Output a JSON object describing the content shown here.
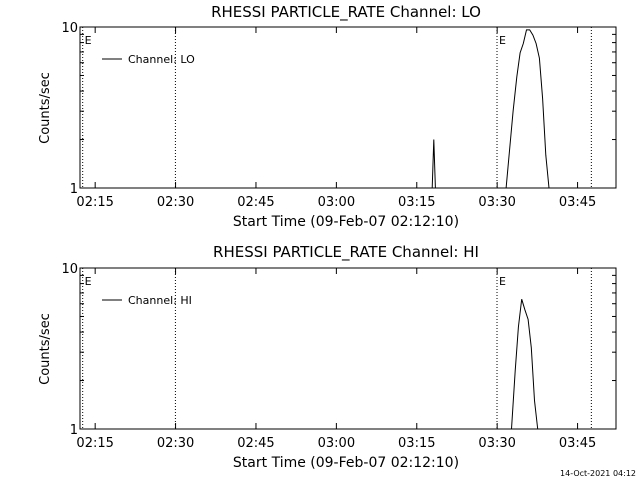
{
  "footer": {
    "date_stamp": "14-Oct-2021 04:12"
  },
  "chart_data": [
    {
      "type": "line",
      "title": "RHESSI PARTICLE_RATE Channel: LO",
      "xlabel": "Start Time (09-Feb-07 02:12:10)",
      "ylabel": "Counts/sec",
      "x_unit": "minutes since 02:12:10",
      "xlim": [
        0,
        100
      ],
      "ylim": [
        1,
        10
      ],
      "y_scale": "log",
      "x_tick_labels": [
        "02:15",
        "02:30",
        "02:45",
        "03:00",
        "03:15",
        "03:30",
        "03:45"
      ],
      "y_tick_labels": [
        "1",
        "10"
      ],
      "event_markers": [
        {
          "label": "E",
          "x": 0.5
        },
        {
          "label": "",
          "x": 17.8
        },
        {
          "label": "E",
          "x": 77.8
        },
        {
          "label": "",
          "x": 95.4
        }
      ],
      "legend": {
        "position": "top-left",
        "entries": [
          "Channel: LO"
        ]
      },
      "series": [
        {
          "name": "Channel: LO",
          "color": "#000000",
          "x": [
            65.2,
            65.7,
            66.0,
            66.3,
            66.8,
            78.0,
            79.5,
            80.8,
            81.5,
            82.1,
            82.7,
            83.3,
            83.9,
            84.5,
            85.1,
            85.7,
            86.3,
            86.9,
            87.5
          ],
          "y": [
            1.0,
            1.0,
            2.0,
            1.0,
            1.0,
            1.0,
            1.0,
            3.0,
            4.9,
            6.9,
            7.9,
            9.6,
            9.6,
            8.9,
            7.9,
            6.4,
            3.6,
            1.6,
            1.0
          ]
        }
      ]
    },
    {
      "type": "line",
      "title": "RHESSI PARTICLE_RATE Channel: HI",
      "xlabel": "Start Time (09-Feb-07 02:12:10)",
      "ylabel": "Counts/sec",
      "x_unit": "minutes since 02:12:10",
      "xlim": [
        0,
        100
      ],
      "ylim": [
        1,
        10
      ],
      "y_scale": "log",
      "x_tick_labels": [
        "02:15",
        "02:30",
        "02:45",
        "03:00",
        "03:15",
        "03:30",
        "03:45"
      ],
      "y_tick_labels": [
        "1",
        "10"
      ],
      "event_markers": [
        {
          "label": "E",
          "x": 0.5
        },
        {
          "label": "",
          "x": 17.8
        },
        {
          "label": "E",
          "x": 77.8
        },
        {
          "label": "",
          "x": 95.4
        }
      ],
      "legend": {
        "position": "top-left",
        "entries": [
          "Channel: HI"
        ]
      },
      "series": [
        {
          "name": "Channel: HI",
          "color": "#000000",
          "x": [
            79.5,
            80.5,
            81.2,
            81.8,
            82.4,
            83.0,
            83.6,
            84.2,
            84.8,
            85.4
          ],
          "y": [
            1.0,
            1.0,
            2.3,
            4.3,
            6.4,
            5.5,
            4.8,
            3.2,
            1.5,
            1.0
          ]
        }
      ]
    }
  ]
}
